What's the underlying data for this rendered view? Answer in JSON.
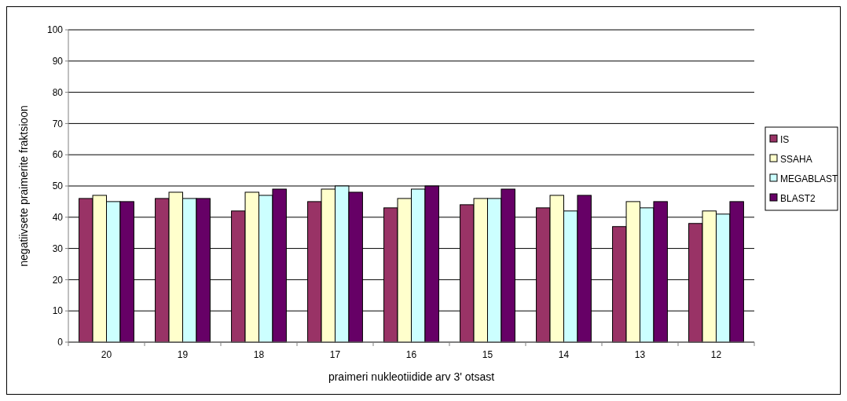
{
  "chart_data": {
    "type": "bar",
    "xlabel": "praimeri nukleotiidide arv 3' otsast",
    "ylabel": "negatiivsete praimerite fraktsioon",
    "categories": [
      "20",
      "19",
      "18",
      "17",
      "16",
      "15",
      "14",
      "13",
      "12"
    ],
    "series": [
      {
        "name": "IS",
        "color": "#993366",
        "values": [
          46,
          46,
          42,
          45,
          43,
          44,
          43,
          37,
          38
        ]
      },
      {
        "name": "SSAHA",
        "color": "#ffffcc",
        "values": [
          47,
          48,
          48,
          49,
          46,
          46,
          47,
          45,
          42
        ]
      },
      {
        "name": "MEGABLAST",
        "color": "#ccffff",
        "values": [
          45,
          46,
          47,
          50,
          49,
          46,
          42,
          43,
          41
        ]
      },
      {
        "name": "BLAST2",
        "color": "#660066",
        "values": [
          45,
          46,
          49,
          48,
          50,
          49,
          47,
          45,
          45
        ]
      }
    ],
    "ylim": [
      0,
      100
    ],
    "yticks": [
      0,
      10,
      20,
      30,
      40,
      50,
      60,
      70,
      80,
      90,
      100
    ],
    "grid": "y",
    "legend": "right"
  }
}
